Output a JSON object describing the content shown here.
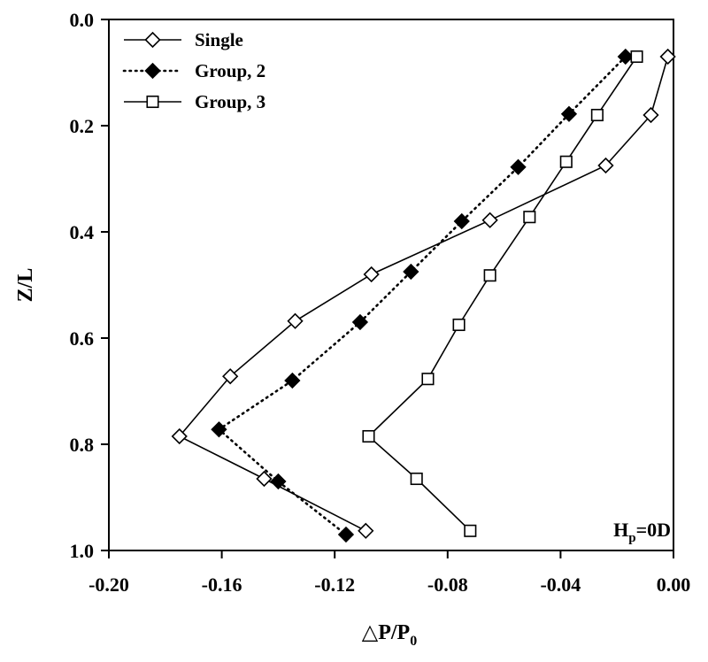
{
  "chart_data": {
    "type": "line",
    "title": "",
    "xlabel_main": "△P/P",
    "xlabel_sub": "0",
    "ylabel": "Z/L",
    "xlim": [
      -0.2,
      0.0
    ],
    "ylim": [
      0.0,
      1.0
    ],
    "y_inverted": true,
    "grid": false,
    "legend_position": "top-left",
    "xticks": [
      -0.2,
      -0.16,
      -0.12,
      -0.08,
      -0.04,
      0.0
    ],
    "xtick_labels": [
      "-0.20",
      "-0.16",
      "-0.12",
      "-0.08",
      "-0.04",
      "0.00"
    ],
    "yticks": [
      0.0,
      0.2,
      0.4,
      0.6,
      0.8,
      1.0
    ],
    "ytick_labels": [
      "0.0",
      "0.2",
      "0.4",
      "0.6",
      "0.8",
      "1.0"
    ],
    "annotation": {
      "main": "H",
      "sub": "p",
      "rest": "=0D"
    },
    "series": [
      {
        "name": "Single",
        "marker": "diamond-open",
        "line": "solid",
        "x": [
          -0.002,
          -0.008,
          -0.024,
          -0.065,
          -0.107,
          -0.134,
          -0.157,
          -0.175,
          -0.145,
          -0.109
        ],
        "y": [
          0.07,
          0.18,
          0.275,
          0.378,
          0.48,
          0.568,
          0.672,
          0.785,
          0.865,
          0.963
        ]
      },
      {
        "name": "Group, 2",
        "marker": "diamond-filled",
        "line": "dotted",
        "x": [
          -0.017,
          -0.037,
          -0.055,
          -0.075,
          -0.093,
          -0.111,
          -0.135,
          -0.161,
          -0.14,
          -0.116
        ],
        "y": [
          0.07,
          0.178,
          0.278,
          0.38,
          0.475,
          0.57,
          0.68,
          0.772,
          0.87,
          0.97
        ]
      },
      {
        "name": "Group, 3",
        "marker": "square-open",
        "line": "solid",
        "x": [
          -0.013,
          -0.027,
          -0.038,
          -0.051,
          -0.065,
          -0.076,
          -0.087,
          -0.108,
          -0.091,
          -0.072
        ],
        "y": [
          0.07,
          0.18,
          0.268,
          0.372,
          0.482,
          0.575,
          0.677,
          0.785,
          0.865,
          0.963
        ]
      }
    ]
  }
}
